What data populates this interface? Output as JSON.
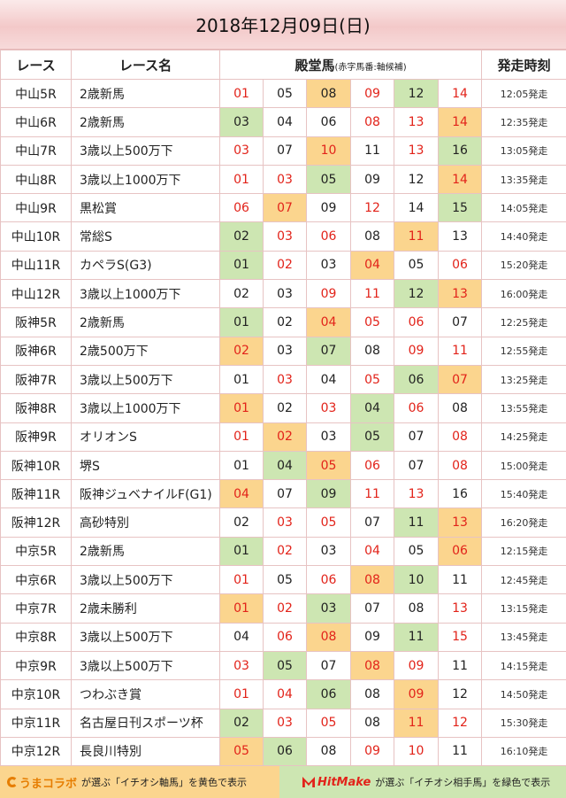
{
  "title": "2018年12月09日(日)",
  "headers": {
    "race": "レース",
    "name": "レース名",
    "horses": "殿堂馬",
    "horses_sub": "(赤字馬番:軸候補)",
    "time": "発走時刻"
  },
  "colors": {
    "red": "#e2231a",
    "yellow": "#fbd58e",
    "green": "#cde6b2"
  },
  "rows": [
    {
      "race": "中山5R",
      "name": "2歳新馬",
      "horses": [
        {
          "n": "01",
          "c": "red",
          "bg": ""
        },
        {
          "n": "05",
          "c": "",
          "bg": ""
        },
        {
          "n": "08",
          "c": "",
          "bg": "yellow"
        },
        {
          "n": "09",
          "c": "red",
          "bg": ""
        },
        {
          "n": "12",
          "c": "",
          "bg": "green"
        },
        {
          "n": "14",
          "c": "red",
          "bg": ""
        }
      ],
      "time": "12:05発走"
    },
    {
      "race": "中山6R",
      "name": "2歳新馬",
      "horses": [
        {
          "n": "03",
          "c": "",
          "bg": "green"
        },
        {
          "n": "04",
          "c": "",
          "bg": ""
        },
        {
          "n": "06",
          "c": "",
          "bg": ""
        },
        {
          "n": "08",
          "c": "red",
          "bg": ""
        },
        {
          "n": "13",
          "c": "red",
          "bg": ""
        },
        {
          "n": "14",
          "c": "red",
          "bg": "yellow"
        }
      ],
      "time": "12:35発走"
    },
    {
      "race": "中山7R",
      "name": "3歳以上500万下",
      "horses": [
        {
          "n": "03",
          "c": "red",
          "bg": ""
        },
        {
          "n": "07",
          "c": "",
          "bg": ""
        },
        {
          "n": "10",
          "c": "red",
          "bg": "yellow"
        },
        {
          "n": "11",
          "c": "",
          "bg": ""
        },
        {
          "n": "13",
          "c": "red",
          "bg": ""
        },
        {
          "n": "16",
          "c": "",
          "bg": "green"
        }
      ],
      "time": "13:05発走"
    },
    {
      "race": "中山8R",
      "name": "3歳以上1000万下",
      "horses": [
        {
          "n": "01",
          "c": "red",
          "bg": ""
        },
        {
          "n": "03",
          "c": "red",
          "bg": ""
        },
        {
          "n": "05",
          "c": "",
          "bg": "green"
        },
        {
          "n": "09",
          "c": "",
          "bg": ""
        },
        {
          "n": "12",
          "c": "",
          "bg": ""
        },
        {
          "n": "14",
          "c": "red",
          "bg": "yellow"
        }
      ],
      "time": "13:35発走"
    },
    {
      "race": "中山9R",
      "name": "黒松賞",
      "horses": [
        {
          "n": "06",
          "c": "red",
          "bg": ""
        },
        {
          "n": "07",
          "c": "red",
          "bg": "yellow"
        },
        {
          "n": "09",
          "c": "",
          "bg": ""
        },
        {
          "n": "12",
          "c": "red",
          "bg": ""
        },
        {
          "n": "14",
          "c": "",
          "bg": ""
        },
        {
          "n": "15",
          "c": "",
          "bg": "green"
        }
      ],
      "time": "14:05発走"
    },
    {
      "race": "中山10R",
      "name": "常総S",
      "horses": [
        {
          "n": "02",
          "c": "",
          "bg": "green"
        },
        {
          "n": "03",
          "c": "red",
          "bg": ""
        },
        {
          "n": "06",
          "c": "red",
          "bg": ""
        },
        {
          "n": "08",
          "c": "",
          "bg": ""
        },
        {
          "n": "11",
          "c": "red",
          "bg": "yellow"
        },
        {
          "n": "13",
          "c": "",
          "bg": ""
        }
      ],
      "time": "14:40発走"
    },
    {
      "race": "中山11R",
      "name": "カペラS(G3)",
      "horses": [
        {
          "n": "01",
          "c": "",
          "bg": "green"
        },
        {
          "n": "02",
          "c": "red",
          "bg": ""
        },
        {
          "n": "03",
          "c": "",
          "bg": ""
        },
        {
          "n": "04",
          "c": "red",
          "bg": "yellow"
        },
        {
          "n": "05",
          "c": "",
          "bg": ""
        },
        {
          "n": "06",
          "c": "red",
          "bg": ""
        }
      ],
      "time": "15:20発走"
    },
    {
      "race": "中山12R",
      "name": "3歳以上1000万下",
      "horses": [
        {
          "n": "02",
          "c": "",
          "bg": ""
        },
        {
          "n": "03",
          "c": "",
          "bg": ""
        },
        {
          "n": "09",
          "c": "red",
          "bg": ""
        },
        {
          "n": "11",
          "c": "red",
          "bg": ""
        },
        {
          "n": "12",
          "c": "",
          "bg": "green"
        },
        {
          "n": "13",
          "c": "red",
          "bg": "yellow"
        }
      ],
      "time": "16:00発走"
    },
    {
      "race": "阪神5R",
      "name": "2歳新馬",
      "horses": [
        {
          "n": "01",
          "c": "",
          "bg": "green"
        },
        {
          "n": "02",
          "c": "",
          "bg": ""
        },
        {
          "n": "04",
          "c": "red",
          "bg": "yellow"
        },
        {
          "n": "05",
          "c": "red",
          "bg": ""
        },
        {
          "n": "06",
          "c": "red",
          "bg": ""
        },
        {
          "n": "07",
          "c": "",
          "bg": ""
        }
      ],
      "time": "12:25発走"
    },
    {
      "race": "阪神6R",
      "name": "2歳500万下",
      "horses": [
        {
          "n": "02",
          "c": "red",
          "bg": "yellow"
        },
        {
          "n": "03",
          "c": "",
          "bg": ""
        },
        {
          "n": "07",
          "c": "",
          "bg": "green"
        },
        {
          "n": "08",
          "c": "",
          "bg": ""
        },
        {
          "n": "09",
          "c": "red",
          "bg": ""
        },
        {
          "n": "11",
          "c": "red",
          "bg": ""
        }
      ],
      "time": "12:55発走"
    },
    {
      "race": "阪神7R",
      "name": "3歳以上500万下",
      "horses": [
        {
          "n": "01",
          "c": "",
          "bg": ""
        },
        {
          "n": "03",
          "c": "red",
          "bg": ""
        },
        {
          "n": "04",
          "c": "",
          "bg": ""
        },
        {
          "n": "05",
          "c": "red",
          "bg": ""
        },
        {
          "n": "06",
          "c": "",
          "bg": "green"
        },
        {
          "n": "07",
          "c": "red",
          "bg": "yellow"
        }
      ],
      "time": "13:25発走"
    },
    {
      "race": "阪神8R",
      "name": "3歳以上1000万下",
      "horses": [
        {
          "n": "01",
          "c": "red",
          "bg": "yellow"
        },
        {
          "n": "02",
          "c": "",
          "bg": ""
        },
        {
          "n": "03",
          "c": "red",
          "bg": ""
        },
        {
          "n": "04",
          "c": "",
          "bg": "green"
        },
        {
          "n": "06",
          "c": "red",
          "bg": ""
        },
        {
          "n": "08",
          "c": "",
          "bg": ""
        }
      ],
      "time": "13:55発走"
    },
    {
      "race": "阪神9R",
      "name": "オリオンS",
      "horses": [
        {
          "n": "01",
          "c": "red",
          "bg": ""
        },
        {
          "n": "02",
          "c": "red",
          "bg": "yellow"
        },
        {
          "n": "03",
          "c": "",
          "bg": ""
        },
        {
          "n": "05",
          "c": "",
          "bg": "green"
        },
        {
          "n": "07",
          "c": "",
          "bg": ""
        },
        {
          "n": "08",
          "c": "red",
          "bg": ""
        }
      ],
      "time": "14:25発走"
    },
    {
      "race": "阪神10R",
      "name": "堺S",
      "horses": [
        {
          "n": "01",
          "c": "",
          "bg": ""
        },
        {
          "n": "04",
          "c": "",
          "bg": "green"
        },
        {
          "n": "05",
          "c": "red",
          "bg": "yellow"
        },
        {
          "n": "06",
          "c": "red",
          "bg": ""
        },
        {
          "n": "07",
          "c": "",
          "bg": ""
        },
        {
          "n": "08",
          "c": "red",
          "bg": ""
        }
      ],
      "time": "15:00発走"
    },
    {
      "race": "阪神11R",
      "name": "阪神ジュベナイルF(G1)",
      "horses": [
        {
          "n": "04",
          "c": "red",
          "bg": "yellow"
        },
        {
          "n": "07",
          "c": "",
          "bg": ""
        },
        {
          "n": "09",
          "c": "",
          "bg": "green"
        },
        {
          "n": "11",
          "c": "red",
          "bg": ""
        },
        {
          "n": "13",
          "c": "red",
          "bg": ""
        },
        {
          "n": "16",
          "c": "",
          "bg": ""
        }
      ],
      "time": "15:40発走"
    },
    {
      "race": "阪神12R",
      "name": "高砂特別",
      "horses": [
        {
          "n": "02",
          "c": "",
          "bg": ""
        },
        {
          "n": "03",
          "c": "red",
          "bg": ""
        },
        {
          "n": "05",
          "c": "red",
          "bg": ""
        },
        {
          "n": "07",
          "c": "",
          "bg": ""
        },
        {
          "n": "11",
          "c": "",
          "bg": "green"
        },
        {
          "n": "13",
          "c": "red",
          "bg": "yellow"
        }
      ],
      "time": "16:20発走"
    },
    {
      "race": "中京5R",
      "name": "2歳新馬",
      "horses": [
        {
          "n": "01",
          "c": "",
          "bg": "green"
        },
        {
          "n": "02",
          "c": "red",
          "bg": ""
        },
        {
          "n": "03",
          "c": "",
          "bg": ""
        },
        {
          "n": "04",
          "c": "red",
          "bg": ""
        },
        {
          "n": "05",
          "c": "",
          "bg": ""
        },
        {
          "n": "06",
          "c": "red",
          "bg": "yellow"
        }
      ],
      "time": "12:15発走"
    },
    {
      "race": "中京6R",
      "name": "3歳以上500万下",
      "horses": [
        {
          "n": "01",
          "c": "red",
          "bg": ""
        },
        {
          "n": "05",
          "c": "",
          "bg": ""
        },
        {
          "n": "06",
          "c": "red",
          "bg": ""
        },
        {
          "n": "08",
          "c": "red",
          "bg": "yellow"
        },
        {
          "n": "10",
          "c": "",
          "bg": "green"
        },
        {
          "n": "11",
          "c": "",
          "bg": ""
        }
      ],
      "time": "12:45発走"
    },
    {
      "race": "中京7R",
      "name": "2歳未勝利",
      "horses": [
        {
          "n": "01",
          "c": "red",
          "bg": "yellow"
        },
        {
          "n": "02",
          "c": "red",
          "bg": ""
        },
        {
          "n": "03",
          "c": "",
          "bg": "green"
        },
        {
          "n": "07",
          "c": "",
          "bg": ""
        },
        {
          "n": "08",
          "c": "",
          "bg": ""
        },
        {
          "n": "13",
          "c": "red",
          "bg": ""
        }
      ],
      "time": "13:15発走"
    },
    {
      "race": "中京8R",
      "name": "3歳以上500万下",
      "horses": [
        {
          "n": "04",
          "c": "",
          "bg": ""
        },
        {
          "n": "06",
          "c": "red",
          "bg": ""
        },
        {
          "n": "08",
          "c": "red",
          "bg": "yellow"
        },
        {
          "n": "09",
          "c": "",
          "bg": ""
        },
        {
          "n": "11",
          "c": "",
          "bg": "green"
        },
        {
          "n": "15",
          "c": "red",
          "bg": ""
        }
      ],
      "time": "13:45発走"
    },
    {
      "race": "中京9R",
      "name": "3歳以上500万下",
      "horses": [
        {
          "n": "03",
          "c": "red",
          "bg": ""
        },
        {
          "n": "05",
          "c": "",
          "bg": "green"
        },
        {
          "n": "07",
          "c": "",
          "bg": ""
        },
        {
          "n": "08",
          "c": "red",
          "bg": "yellow"
        },
        {
          "n": "09",
          "c": "red",
          "bg": ""
        },
        {
          "n": "11",
          "c": "",
          "bg": ""
        }
      ],
      "time": "14:15発走"
    },
    {
      "race": "中京10R",
      "name": "つわぶき賞",
      "horses": [
        {
          "n": "01",
          "c": "red",
          "bg": ""
        },
        {
          "n": "04",
          "c": "red",
          "bg": ""
        },
        {
          "n": "06",
          "c": "",
          "bg": "green"
        },
        {
          "n": "08",
          "c": "",
          "bg": ""
        },
        {
          "n": "09",
          "c": "red",
          "bg": "yellow"
        },
        {
          "n": "12",
          "c": "",
          "bg": ""
        }
      ],
      "time": "14:50発走"
    },
    {
      "race": "中京11R",
      "name": "名古屋日刊スポーツ杯",
      "horses": [
        {
          "n": "02",
          "c": "",
          "bg": "green"
        },
        {
          "n": "03",
          "c": "red",
          "bg": ""
        },
        {
          "n": "05",
          "c": "red",
          "bg": ""
        },
        {
          "n": "08",
          "c": "",
          "bg": ""
        },
        {
          "n": "11",
          "c": "red",
          "bg": "yellow"
        },
        {
          "n": "12",
          "c": "red",
          "bg": ""
        }
      ],
      "time": "15:30発走"
    },
    {
      "race": "中京12R",
      "name": "長良川特別",
      "horses": [
        {
          "n": "05",
          "c": "red",
          "bg": "yellow"
        },
        {
          "n": "06",
          "c": "",
          "bg": "green"
        },
        {
          "n": "08",
          "c": "",
          "bg": ""
        },
        {
          "n": "09",
          "c": "red",
          "bg": ""
        },
        {
          "n": "10",
          "c": "red",
          "bg": ""
        },
        {
          "n": "11",
          "c": "",
          "bg": ""
        }
      ],
      "time": "16:10発走"
    }
  ],
  "footer": {
    "left_logo": "うまコラボ",
    "left_text": "が選ぶ「イチオシ軸馬」を黄色で表示",
    "right_logo": "HitMake",
    "right_text": "が選ぶ「イチオシ相手馬」を緑色で表示"
  }
}
